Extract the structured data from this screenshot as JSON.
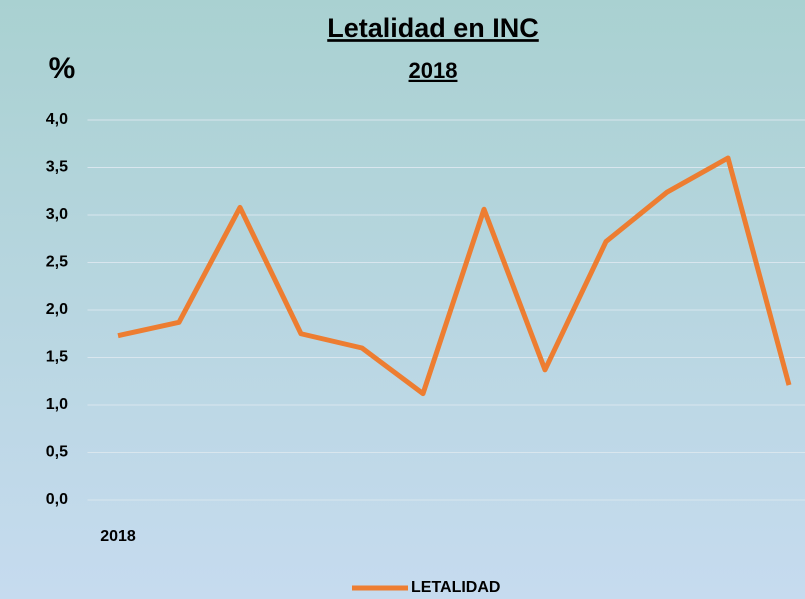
{
  "chart_data": {
    "type": "line",
    "title": "Letalidad en INC",
    "subtitle": "2018",
    "y_label": "%",
    "categories": [
      "2018",
      null,
      null,
      null,
      null,
      null,
      null,
      null,
      null,
      null,
      null,
      null
    ],
    "series": [
      {
        "name": "LETALIDAD",
        "color": "#ed7d31",
        "values": [
          1.73,
          1.87,
          3.08,
          1.75,
          1.6,
          1.12,
          3.06,
          1.37,
          2.72,
          3.24,
          3.6,
          1.21
        ]
      }
    ],
    "ylim": [
      0,
      4
    ],
    "yticks": [
      {
        "value": 0,
        "label": "0,0"
      },
      {
        "value": 0.5,
        "label": "0,5"
      },
      {
        "value": 1,
        "label": "1,0"
      },
      {
        "value": 1.5,
        "label": "1,5"
      },
      {
        "value": 2,
        "label": "2,0"
      },
      {
        "value": 2.5,
        "label": "2,5"
      },
      {
        "value": 3,
        "label": "3,0"
      },
      {
        "value": 3.5,
        "label": "3,5"
      },
      {
        "value": 4,
        "label": "4,0"
      }
    ],
    "grid": true,
    "legend": "bottom"
  }
}
